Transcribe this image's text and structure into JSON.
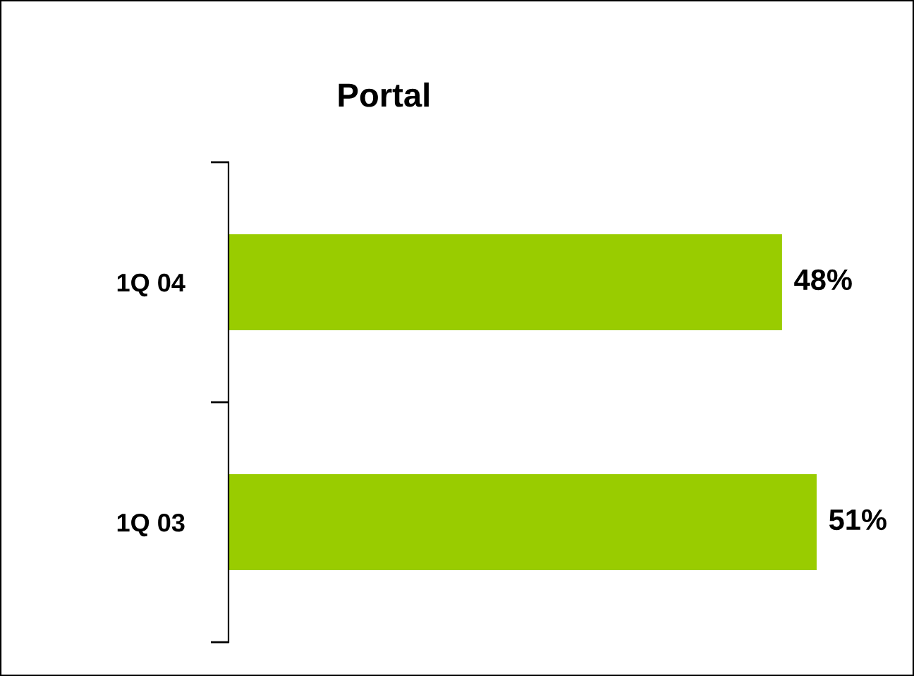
{
  "chart_data": {
    "type": "bar",
    "orientation": "horizontal",
    "title": "Portal",
    "categories": [
      "1Q 04",
      "1Q 03"
    ],
    "values": [
      48,
      51
    ],
    "value_labels": [
      "48%",
      "51%"
    ],
    "color": "#99cc00",
    "tick_labels": "y",
    "grid": false,
    "legend": false
  }
}
